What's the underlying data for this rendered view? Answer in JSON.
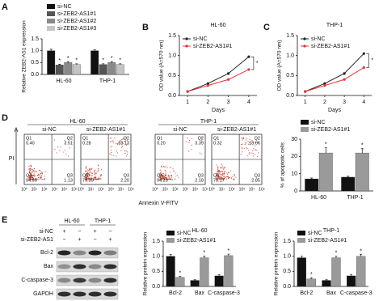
{
  "panel_labels": [
    "A",
    "B",
    "C",
    "D",
    "E"
  ],
  "chart_data": [
    {
      "type": "bar",
      "ylabel": "Relative ZEB2-AS1 expression",
      "categories": [
        "HL-60",
        "THP-1"
      ],
      "series": [
        {
          "name": "si-NC",
          "color": "#111111",
          "values": [
            1.0,
            1.0
          ],
          "errors": [
            0.06,
            0.05
          ]
        },
        {
          "name": "si-ZEB2-AS1#1",
          "color": "#555555",
          "values": [
            0.4,
            0.42
          ],
          "errors": [
            0.03,
            0.03
          ]
        },
        {
          "name": "si-ZEB2-AS1#2",
          "color": "#8a8a8a",
          "values": [
            0.5,
            0.5
          ],
          "errors": [
            0.04,
            0.04
          ]
        },
        {
          "name": "si-ZEB2-AS1#3",
          "color": "#c4c4c4",
          "values": [
            0.42,
            0.42
          ],
          "errors": [
            0.03,
            0.03
          ]
        }
      ],
      "ylim": [
        0,
        1.5
      ],
      "yticks": [
        {
          "value": 0,
          "label": "0.0"
        },
        {
          "value": 0.5,
          "label": "0.5"
        },
        {
          "value": 1,
          "label": "1.0"
        },
        {
          "value": 1.5,
          "label": "1.5"
        }
      ],
      "annotation": "*"
    },
    {
      "type": "line",
      "title": "HL-60",
      "xlabel": "Days",
      "ylabel": "OD value (A=570 nm)",
      "x": [
        1,
        2,
        3,
        4
      ],
      "xlim": [
        0.6,
        4.4
      ],
      "xticks": [
        1,
        2,
        3,
        4
      ],
      "series": [
        {
          "name": "si-NC",
          "color": "#222222",
          "values": [
            0.1,
            0.3,
            0.55,
            0.97
          ]
        },
        {
          "name": "si-ZEB2-AS1#1",
          "color": "#e8312f",
          "values": [
            0.1,
            0.25,
            0.4,
            0.65
          ]
        }
      ],
      "ylim": [
        0,
        1.5
      ],
      "yticks": [
        {
          "value": 0,
          "label": "0.0"
        },
        {
          "value": 0.5,
          "label": "0.5"
        },
        {
          "value": 1,
          "label": "1.0"
        },
        {
          "value": 1.5,
          "label": "1.5"
        }
      ],
      "annotation": "*"
    },
    {
      "type": "line",
      "title": "THP-1",
      "xlabel": "Days",
      "ylabel": "OD value (A=570 nm)",
      "x": [
        1,
        2,
        3,
        4
      ],
      "xlim": [
        0.6,
        4.4
      ],
      "xticks": [
        1,
        2,
        3,
        4
      ],
      "series": [
        {
          "name": "si-NC",
          "color": "#222222",
          "values": [
            0.1,
            0.3,
            0.55,
            1.05
          ]
        },
        {
          "name": "si-ZEB2-AS1#1",
          "color": "#e8312f",
          "values": [
            0.1,
            0.25,
            0.4,
            0.7
          ]
        }
      ],
      "ylim": [
        0,
        1.5
      ],
      "yticks": [
        {
          "value": 0,
          "label": "0.0"
        },
        {
          "value": 0.5,
          "label": "0.5"
        },
        {
          "value": 1,
          "label": "1.0"
        },
        {
          "value": 1.5,
          "label": "1.5"
        }
      ],
      "annotation": "*"
    },
    {
      "type": "bar",
      "ylabel": "% of apoptotic cells",
      "categories": [
        "HL-60",
        "THP-1"
      ],
      "series": [
        {
          "name": "si-NC",
          "color": "#111111",
          "values": [
            7,
            8
          ],
          "errors": [
            0.5,
            0.5
          ]
        },
        {
          "name": "si-ZEB2-AS1#1",
          "color": "#9a9a9a",
          "values": [
            22,
            22
          ],
          "errors": [
            3,
            2.5
          ]
        }
      ],
      "ylim": [
        0,
        30
      ],
      "yticks": [
        0,
        10,
        20,
        30
      ],
      "annotation": "*"
    },
    {
      "type": "bar",
      "title": "HL-60",
      "ylabel": "Relative protein expression",
      "categories": [
        "Bcl-2",
        "Bax",
        "C-caspase-3"
      ],
      "series": [
        {
          "name": "si-NC",
          "color": "#111111",
          "values": [
            1.0,
            0.2,
            0.35
          ],
          "errors": [
            0.06,
            0.02,
            0.04
          ]
        },
        {
          "name": "si-ZEB2-AS1#1",
          "color": "#9a9a9a",
          "values": [
            0.3,
            0.95,
            1.02
          ],
          "errors": [
            0.03,
            0.06,
            0.05
          ]
        }
      ],
      "ylim": [
        0,
        1.5
      ],
      "yticks": [
        {
          "value": 0,
          "label": "0.0"
        },
        {
          "value": 0.5,
          "label": "0.5"
        },
        {
          "value": 1,
          "label": "1.0"
        },
        {
          "value": 1.5,
          "label": "1.5"
        }
      ],
      "annotation": "*"
    },
    {
      "type": "bar",
      "title": "THP-1",
      "ylabel": "Relative protein expression",
      "categories": [
        "Bcl-2",
        "Bax",
        "C-caspase-3"
      ],
      "series": [
        {
          "name": "si-NC",
          "color": "#111111",
          "values": [
            0.95,
            0.2,
            0.35
          ],
          "errors": [
            0.05,
            0.02,
            0.05
          ]
        },
        {
          "name": "si-ZEB2-AS1#1",
          "color": "#9a9a9a",
          "values": [
            0.25,
            0.95,
            1.0
          ],
          "errors": [
            0.04,
            0.05,
            0.06
          ]
        }
      ],
      "ylim": [
        0,
        1.5
      ],
      "yticks": [
        {
          "value": 0,
          "label": "0.0"
        },
        {
          "value": 0.5,
          "label": "0.5"
        },
        {
          "value": 1,
          "label": "1.0"
        },
        {
          "value": 1.5,
          "label": "1.5"
        }
      ],
      "annotation": "*"
    }
  ],
  "flow": {
    "groups": [
      "HL-60",
      "THP-1"
    ],
    "xlabel": "Annexin V-FITV",
    "ylabel": "PI",
    "quadrants": [
      "Q1",
      "Q2",
      "Q3",
      "Q4"
    ],
    "ticks": [
      "10⁰",
      "10¹",
      "10²",
      "10³",
      "10⁴",
      "10⁵"
    ],
    "plots": [
      {
        "label": "si-NC",
        "values": [
          "0.40",
          "3.51",
          "1.13",
          "94.96"
        ]
      },
      {
        "label": "si-ZEB2-AS1#1",
        "values": [
          "0.28",
          "18.13",
          "2.20",
          "79.39"
        ]
      },
      {
        "label": "si-NC",
        "values": [
          "0.20",
          "3.39",
          "2.18",
          "94.23"
        ]
      },
      {
        "label": "si-ZEB2-AS1#1",
        "values": [
          "0.32",
          "18.66",
          "2.85",
          "78.17"
        ]
      }
    ]
  },
  "blot": {
    "groups": [
      "HL-60",
      "THP-1"
    ],
    "rows": [
      {
        "label": "si-NC",
        "signs": [
          "+",
          "−",
          "+",
          "−"
        ]
      },
      {
        "label": "si-ZEB2-AS1",
        "signs": [
          "−",
          "+",
          "−",
          "+"
        ]
      }
    ],
    "bands": [
      "Bcl-2",
      "Bax",
      "C-caspase-3",
      "GAPDH"
    ]
  }
}
